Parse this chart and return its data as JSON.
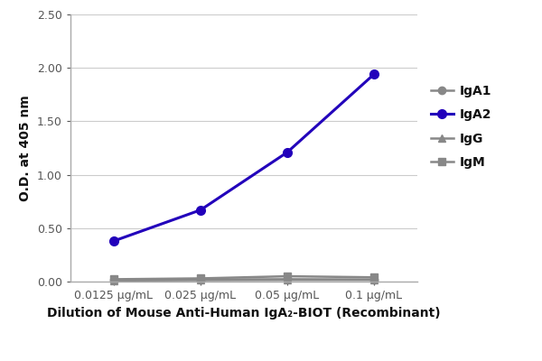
{
  "x_positions": [
    1,
    2,
    3,
    4
  ],
  "x_labels": [
    "0.0125 μg/mL",
    "0.025 μg/mL",
    "0.05 μg/mL",
    "0.1 μg/mL"
  ],
  "series": {
    "IgA1": {
      "values": [
        0.015,
        0.02,
        0.022,
        0.02
      ],
      "color": "#888888",
      "marker": "o",
      "linewidth": 1.8,
      "markersize": 6,
      "zorder": 2
    },
    "IgA2": {
      "values": [
        0.38,
        0.67,
        1.21,
        1.94
      ],
      "color": "#2200bb",
      "marker": "o",
      "linewidth": 2.2,
      "markersize": 7,
      "zorder": 3
    },
    "IgG": {
      "values": [
        0.01,
        0.013,
        0.015,
        0.015
      ],
      "color": "#888888",
      "marker": "^",
      "linewidth": 1.8,
      "markersize": 6,
      "zorder": 2
    },
    "IgM": {
      "values": [
        0.022,
        0.03,
        0.05,
        0.04
      ],
      "color": "#888888",
      "marker": "s",
      "linewidth": 1.8,
      "markersize": 6,
      "zorder": 2
    }
  },
  "ylabel": "O.D. at 405 nm",
  "xlabel": "Dilution of Mouse Anti-Human IgA₂-BIOT (Recombinant)",
  "ylim": [
    0.0,
    2.5
  ],
  "yticks": [
    0.0,
    0.5,
    1.0,
    1.5,
    2.0,
    2.5
  ],
  "legend_order": [
    "IgA1",
    "IgA2",
    "IgG",
    "IgM"
  ],
  "background_color": "#ffffff",
  "grid_color": "#cccccc",
  "ylabel_fontsize": 10,
  "xlabel_fontsize": 10,
  "tick_fontsize": 9,
  "legend_fontsize": 10
}
